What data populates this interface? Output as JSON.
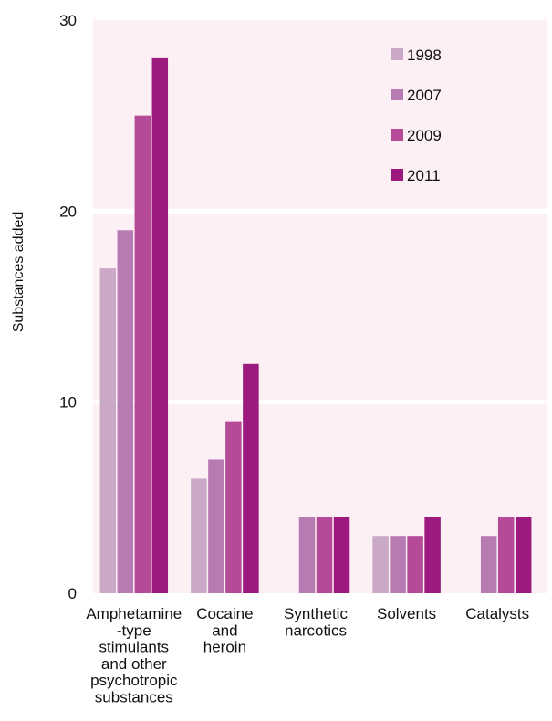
{
  "chart_data": {
    "type": "bar",
    "title": "",
    "xlabel": "",
    "ylabel": "Substances added",
    "ylim": [
      0,
      30
    ],
    "yticks": [
      0,
      10,
      20,
      30
    ],
    "grid": true,
    "legend_position": "top-right",
    "categories": [
      [
        "Amphetamine",
        "-type",
        "stimulants",
        "and other",
        "psychotropic",
        "substances"
      ],
      [
        "Cocaine",
        "and",
        "heroin"
      ],
      [
        "Synthetic",
        "narcotics"
      ],
      [
        "Solvents"
      ],
      [
        "Catalysts"
      ]
    ],
    "series": [
      {
        "name": "1998",
        "color": "#c9a9c6",
        "values": [
          17,
          6,
          0,
          3,
          0
        ]
      },
      {
        "name": "2007",
        "color": "#b77bb4",
        "values": [
          19,
          7,
          4,
          3,
          3
        ]
      },
      {
        "name": "2009",
        "color": "#b54a98",
        "values": [
          25,
          9,
          4,
          3,
          4
        ]
      },
      {
        "name": "2011",
        "color": "#9c1a7e",
        "values": [
          28,
          12,
          4,
          4,
          4
        ]
      }
    ],
    "colors": {
      "plot_background": "#fdf0f4",
      "gridline": "#ffffff"
    }
  }
}
